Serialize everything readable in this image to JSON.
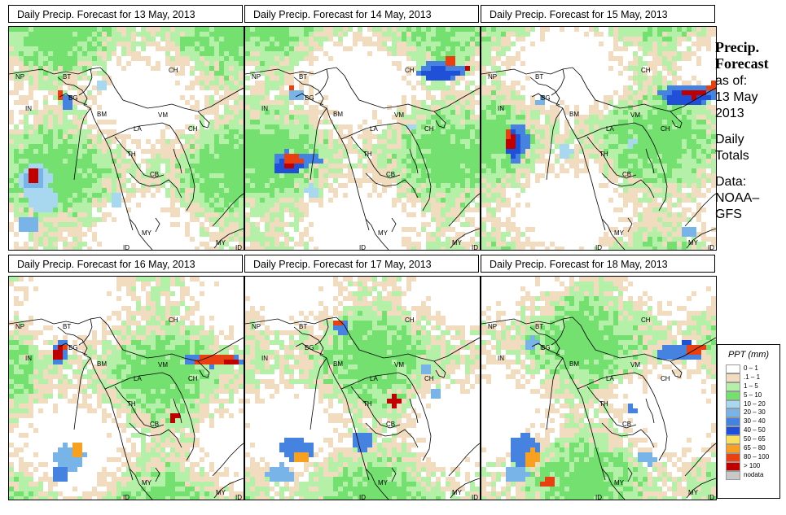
{
  "panels": [
    {
      "title": "Daily Precip. Forecast for  13 May, 2013",
      "variant": 0
    },
    {
      "title": "Daily Precip. Forecast for  14 May, 2013",
      "variant": 1
    },
    {
      "title": "Daily Precip. Forecast for  15 May, 2013",
      "variant": 2
    },
    {
      "title": "Daily Precip. Forecast for  16 May, 2013",
      "variant": 3
    },
    {
      "title": "Daily Precip. Forecast for  17 May, 2013",
      "variant": 4
    },
    {
      "title": "Daily Precip. Forecast for  18 May, 2013",
      "variant": 5
    }
  ],
  "country_labels": [
    "NP",
    "BT",
    "BG",
    "IN",
    "CH",
    "BM",
    "VM",
    "LA",
    "CH",
    "TH",
    "CB",
    "MY",
    "ID",
    "MY",
    "ID"
  ],
  "side": {
    "title_line1": "Precip.",
    "title_line2": "Forecast",
    "asof": "as of:",
    "date1": "13 May",
    "date2": "2013",
    "daily1": "Daily",
    "daily2": "Totals",
    "data1": "Data:",
    "data2": "NOAA–",
    "data3": "GFS"
  },
  "legend": {
    "title": "PPT (mm)",
    "items": [
      {
        "label": "0 – 1",
        "color": "#ffffff"
      },
      {
        "label": ".1 – 1",
        "color": "#f2dcc0"
      },
      {
        "label": "1 – 5",
        "color": "#b4f0a8"
      },
      {
        "label": "5 – 10",
        "color": "#73e070"
      },
      {
        "label": "10 – 20",
        "color": "#a8d8f0"
      },
      {
        "label": "20 – 30",
        "color": "#78b4e8"
      },
      {
        "label": "30 – 40",
        "color": "#4682e0"
      },
      {
        "label": "40 – 50",
        "color": "#2050d8"
      },
      {
        "label": "50 – 65",
        "color": "#f8e060"
      },
      {
        "label": "65 – 80",
        "color": "#f8a020"
      },
      {
        "label": "80 – 100",
        "color": "#e84010"
      },
      {
        "label": "> 100",
        "color": "#c00000"
      },
      {
        "label": "nodata",
        "color": "#c8c8c8"
      }
    ]
  }
}
